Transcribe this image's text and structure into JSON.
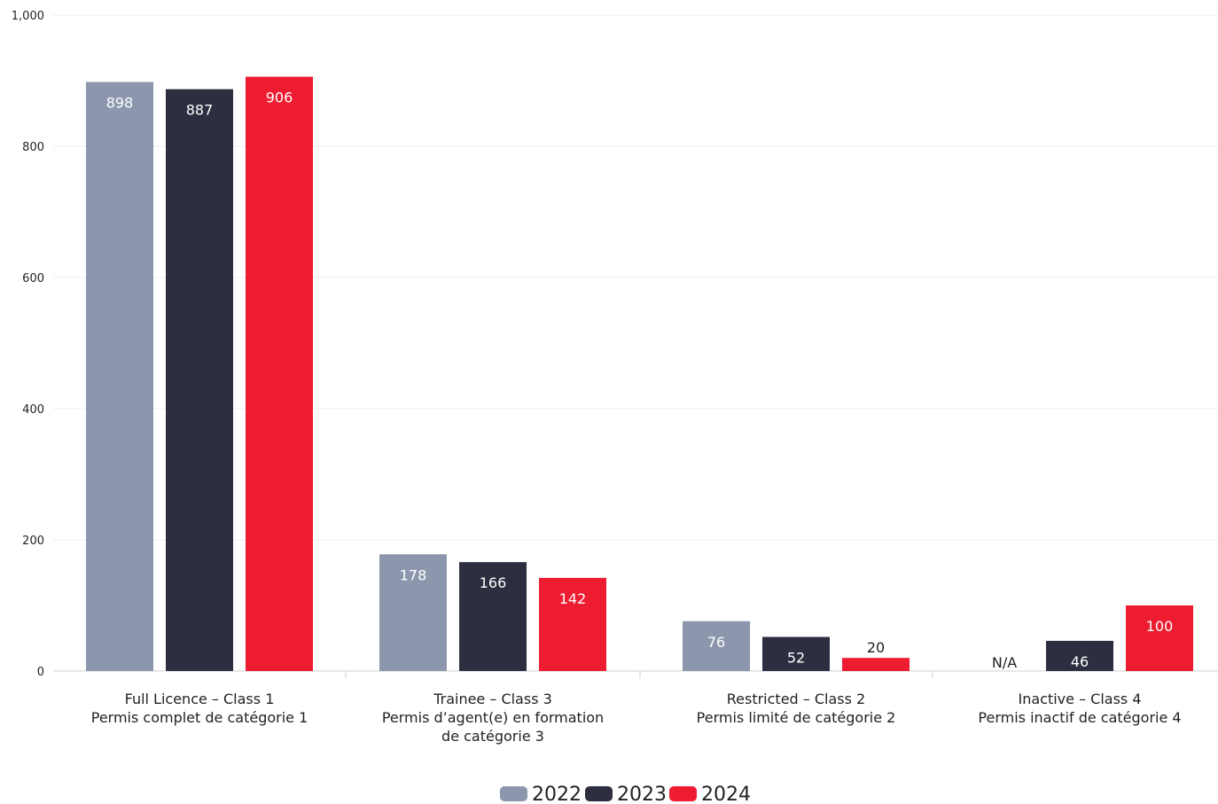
{
  "chart_data": {
    "type": "bar",
    "categories": [
      [
        "Full Licence – Class 1",
        "Permis complet de catégorie 1"
      ],
      [
        "Trainee – Class 3",
        "Permis d’agent(e) en formation",
        "de catégorie 3"
      ],
      [
        "Restricted – Class 2",
        "Permis limité de catégorie 2"
      ],
      [
        "Inactive – Class 4",
        "Permis inactif de catégorie 4"
      ]
    ],
    "series": [
      {
        "name": "2022",
        "values": [
          898,
          178,
          76,
          null
        ],
        "labels": [
          "898",
          "178",
          "76",
          "N/A"
        ],
        "color": "#8c97ae"
      },
      {
        "name": "2023",
        "values": [
          887,
          166,
          52,
          46
        ],
        "labels": [
          "887",
          "166",
          "52",
          "46"
        ],
        "color": "#2d2e40"
      },
      {
        "name": "2024",
        "values": [
          906,
          142,
          20,
          100
        ],
        "labels": [
          "906",
          "142",
          "20",
          "100"
        ],
        "color": "#ee1c31"
      }
    ],
    "y_ticks": [
      "0",
      "200",
      "400",
      "600",
      "800",
      "1,000"
    ],
    "ylim": [
      0,
      1000
    ],
    "grid": true,
    "legend_position": "bottom-center",
    "title": "",
    "xlabel": "",
    "ylabel": ""
  }
}
